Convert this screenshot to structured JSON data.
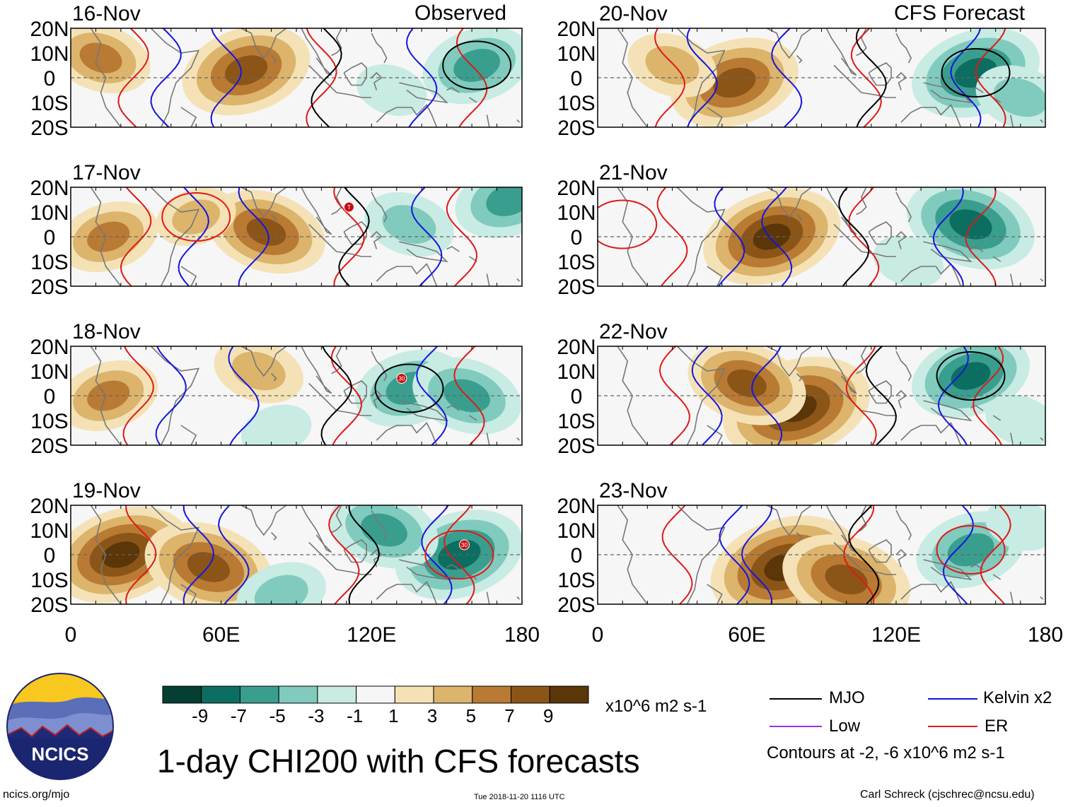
{
  "figure": {
    "title": "1-day CHI200 with CFS forecasts",
    "panel_group_labels": {
      "observed": "Observed",
      "forecast": "CFS Forecast"
    },
    "lat_labels": [
      "20N",
      "10N",
      "0",
      "10S",
      "20S"
    ],
    "lon_labels": [
      "0",
      "60E",
      "120E",
      "180"
    ],
    "colorbar": {
      "ticks": [
        "-9",
        "-7",
        "-5",
        "-3",
        "-1",
        "1",
        "3",
        "5",
        "7",
        "9"
      ],
      "units": "x10^6 m2 s-1",
      "colors": [
        "#053f33",
        "#0c6e60",
        "#3a9e8f",
        "#80cbbd",
        "#c8ebe4",
        "#f6f6f6",
        "#f4e2b6",
        "#dcb46c",
        "#b97a34",
        "#8c5518",
        "#5a3608"
      ]
    },
    "legend": {
      "mjo": {
        "label": "MJO",
        "color": "#000000"
      },
      "kelvin": {
        "label": "Kelvin x2",
        "color": "#1515e0"
      },
      "low": {
        "label": "Low",
        "color": "#9b30e0"
      },
      "er": {
        "label": "ER",
        "color": "#e01818"
      },
      "contours_note": "Contours at -2, -6 x10^6 m2 s-1"
    },
    "logo": {
      "text": "NCICS"
    },
    "footer": {
      "left": "ncics.org/mjo",
      "center": "Tue 2018-11-20 1116 UTC",
      "right": "Carl Schreck (cjschrec@ncsu.edu)"
    }
  },
  "panels": [
    {
      "date": "16-Nov",
      "kind": "Observed",
      "storm_label": "",
      "anomaly_centers": [
        {
          "lon": 70,
          "lat": 3,
          "v": 9
        },
        {
          "lon": 12,
          "lat": 8,
          "v": 6
        },
        {
          "lon": 162,
          "lat": 5,
          "v": -7
        },
        {
          "lon": 128,
          "lat": -5,
          "v": -3
        },
        {
          "lon": 35,
          "lat": 0,
          "v": -1
        }
      ]
    },
    {
      "date": "17-Nov",
      "kind": "Observed",
      "storm_label": "T",
      "anomaly_centers": [
        {
          "lon": 15,
          "lat": 0,
          "v": 6
        },
        {
          "lon": 78,
          "lat": 2,
          "v": 8
        },
        {
          "lon": 50,
          "lat": 8,
          "v": 4
        },
        {
          "lon": 135,
          "lat": 5,
          "v": -5
        },
        {
          "lon": 175,
          "lat": 15,
          "v": -7
        }
      ]
    },
    {
      "date": "18-Nov",
      "kind": "Observed",
      "storm_label": "30",
      "anomaly_centers": [
        {
          "lon": 15,
          "lat": 0,
          "v": 6
        },
        {
          "lon": 75,
          "lat": 10,
          "v": 5
        },
        {
          "lon": 135,
          "lat": 3,
          "v": -7
        },
        {
          "lon": 158,
          "lat": 0,
          "v": -7
        },
        {
          "lon": 82,
          "lat": -14,
          "v": -3
        }
      ]
    },
    {
      "date": "19-Nov",
      "kind": "Observed",
      "storm_label": "30",
      "anomaly_centers": [
        {
          "lon": 20,
          "lat": 0,
          "v": 10
        },
        {
          "lon": 55,
          "lat": -5,
          "v": 9
        },
        {
          "lon": 155,
          "lat": 0,
          "v": -9
        },
        {
          "lon": 125,
          "lat": 10,
          "v": -7
        },
        {
          "lon": 84,
          "lat": -16,
          "v": -5
        }
      ]
    },
    {
      "date": "20-Nov",
      "kind": "CFS Forecast",
      "storm_label": "",
      "anomaly_centers": [
        {
          "lon": 55,
          "lat": -2,
          "v": 9
        },
        {
          "lon": 30,
          "lat": 5,
          "v": 5
        },
        {
          "lon": 152,
          "lat": 2,
          "v": -9
        },
        {
          "lon": 170,
          "lat": -8,
          "v": -5
        }
      ]
    },
    {
      "date": "21-Nov",
      "kind": "CFS Forecast",
      "storm_label": "",
      "anomaly_centers": [
        {
          "lon": 70,
          "lat": 0,
          "v": 10
        },
        {
          "lon": 150,
          "lat": 5,
          "v": -9
        },
        {
          "lon": 10,
          "lat": 5,
          "v": -1
        },
        {
          "lon": 125,
          "lat": -10,
          "v": -3
        }
      ]
    },
    {
      "date": "22-Nov",
      "kind": "CFS Forecast",
      "storm_label": "",
      "anomaly_centers": [
        {
          "lon": 80,
          "lat": -5,
          "v": 11
        },
        {
          "lon": 60,
          "lat": 5,
          "v": 8
        },
        {
          "lon": 150,
          "lat": 8,
          "v": -8
        },
        {
          "lon": 170,
          "lat": -10,
          "v": -3
        }
      ]
    },
    {
      "date": "23-Nov",
      "kind": "CFS Forecast",
      "storm_label": "",
      "anomaly_centers": [
        {
          "lon": 75,
          "lat": -5,
          "v": 11
        },
        {
          "lon": 100,
          "lat": -10,
          "v": 9
        },
        {
          "lon": 150,
          "lat": 2,
          "v": -7
        },
        {
          "lon": 170,
          "lat": 12,
          "v": -3
        }
      ]
    }
  ]
}
